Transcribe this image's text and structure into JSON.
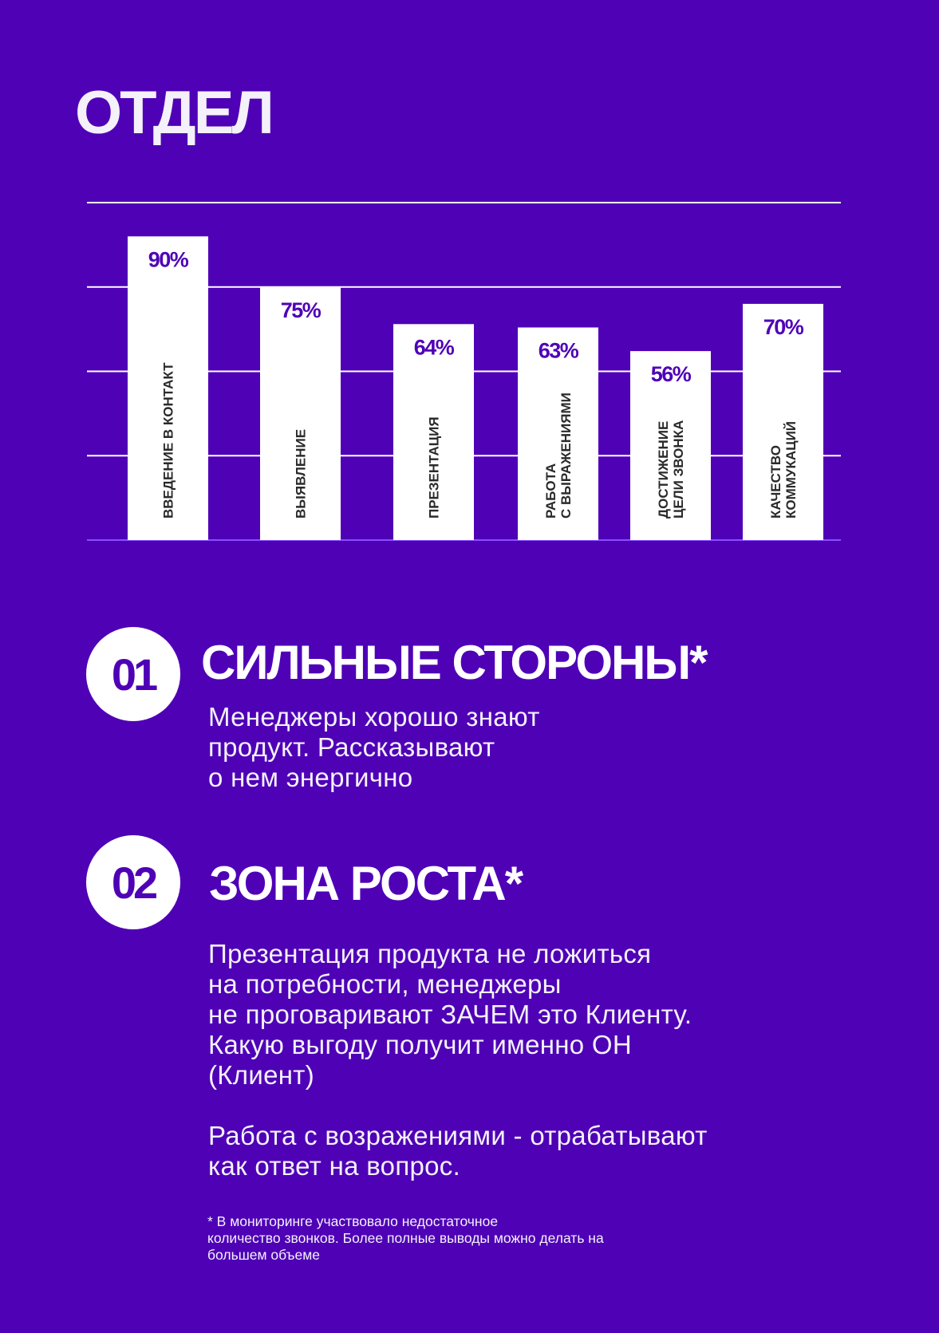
{
  "title": "ОТДЕЛ",
  "chart_data": {
    "type": "bar",
    "categories": [
      "ВВЕДЕНИЕ В КОНТАКТ",
      "ВЫЯВЛЕНИЕ",
      "ПРЕЗЕНТАЦИЯ",
      "РАБОТА\nС ВЫРАЖЕНИЯМИ",
      "ДОСТИЖЕНИЕ\nЦЕЛИ ЗВОНКА",
      "КАЧЕСТВО\nКОММУКАЦИЙ"
    ],
    "values": [
      90,
      75,
      64,
      63,
      56,
      70
    ],
    "data_labels": [
      "90%",
      "75%",
      "64%",
      "63%",
      "56%",
      "70%"
    ],
    "ylim": [
      0,
      100
    ],
    "grid": true,
    "colors": {
      "bar": "#ffffff",
      "label": "#4f01b6",
      "background": "#4f01b6"
    }
  },
  "sections": [
    {
      "number": "01",
      "heading": "СИЛЬНЫЕ СТОРОНЫ*",
      "text": "Менеджеры хорошо знают\nпродукт. Рассказывают\nо нем энергично"
    },
    {
      "number": "02",
      "heading": "ЗОНА РОСТА*",
      "text": "Презентация продукта не ложиться\nна потребности, менеджеры\nне проговаривают ЗАЧЕМ это Клиенту.\nКакую выгоду получит именно ОН\n(Клиент)\n\nРабота с возражениями - отрабатывают\nкак ответ на вопрос."
    }
  ],
  "footnote": "* В мониторинге участвовало недостаточное\nколичество звонков. Более полные выводы можно делать на\nбольшем объеме"
}
